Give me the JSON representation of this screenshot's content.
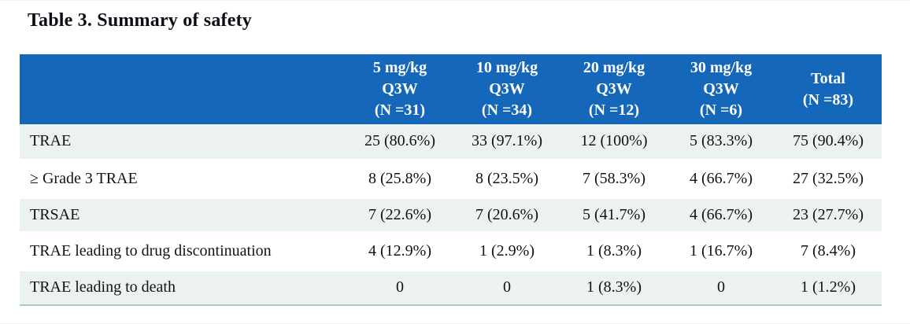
{
  "page": {
    "background": "#ffffff"
  },
  "title": "Table 3. Summary of safety",
  "table": {
    "colors": {
      "header_bg": "#1567b9",
      "header_text": "#ffffff",
      "stripe_row_bg": "#ebf2ef",
      "plain_row_bg": "#ffffff",
      "bottom_rule": "#a6cbc5",
      "body_text": "#131313"
    },
    "columns": [
      {
        "lines": [
          "5 mg/kg",
          "Q3W",
          "(N =31)"
        ]
      },
      {
        "lines": [
          "10 mg/kg",
          "Q3W",
          "(N =34)"
        ]
      },
      {
        "lines": [
          "20 mg/kg",
          "Q3W",
          "(N =12)"
        ]
      },
      {
        "lines": [
          "30 mg/kg",
          "Q3W",
          "(N =6)"
        ]
      },
      {
        "lines": [
          "Total",
          "(N =83)"
        ]
      }
    ],
    "rows": [
      {
        "label": "TRAE",
        "values": [
          "25 (80.6%)",
          "33 (97.1%)",
          "12 (100%)",
          "5 (83.3%)",
          "75 (90.4%)"
        ]
      },
      {
        "label": "≥ Grade 3 TRAE",
        "values": [
          "8 (25.8%)",
          "8 (23.5%)",
          "7 (58.3%)",
          "4 (66.7%)",
          "27 (32.5%)"
        ]
      },
      {
        "label": "TRSAE",
        "values": [
          "7 (22.6%)",
          "7 (20.6%)",
          "5 (41.7%)",
          "4 (66.7%)",
          "23 (27.7%)"
        ]
      },
      {
        "label": "TRAE leading to drug discontinuation",
        "values": [
          "4 (12.9%)",
          "1 (2.9%)",
          "1 (8.3%)",
          "1 (16.7%)",
          "7 (8.4%)"
        ]
      },
      {
        "label": "TRAE leading to death",
        "values": [
          "0",
          "0",
          "1 (8.3%)",
          "0",
          "1 (1.2%)"
        ]
      }
    ]
  }
}
